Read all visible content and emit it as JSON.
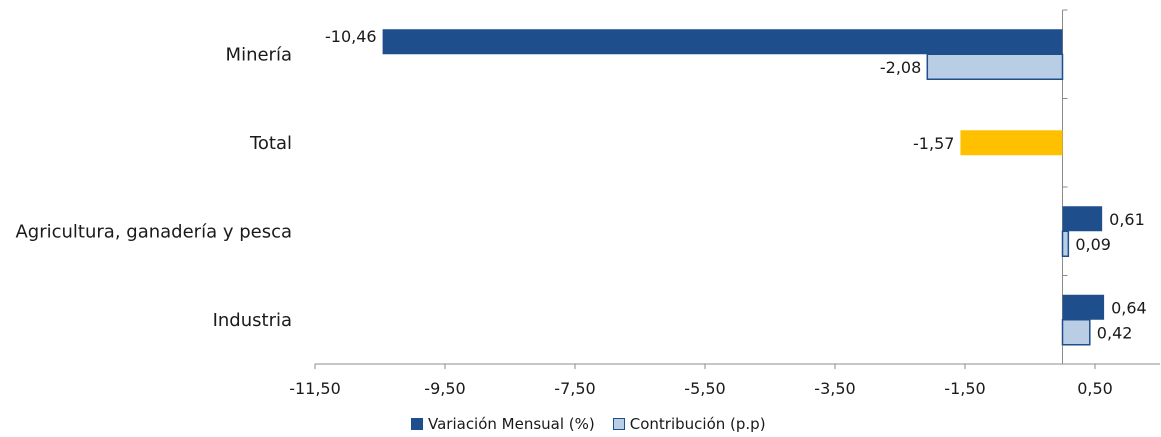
{
  "chart_data": {
    "type": "bar",
    "orientation": "horizontal",
    "categories": [
      "Minería",
      "Total",
      "Agricultura, ganadería y pesca",
      "Industria"
    ],
    "series": [
      {
        "name": "Variación Mensual (%)",
        "values": [
          -10.46,
          null,
          0.61,
          0.64
        ],
        "labels": [
          "-10,46",
          null,
          "0,61",
          "0,64"
        ],
        "color": "#1f4e8c"
      },
      {
        "name": "Contribución (p.p)",
        "values": [
          -2.08,
          null,
          0.09,
          0.42
        ],
        "labels": [
          "-2,08",
          null,
          "0,09",
          "0,42"
        ],
        "color": "#b9cde5"
      },
      {
        "name": "",
        "values": [
          null,
          -1.57,
          null,
          null
        ],
        "labels": [
          null,
          "-1,57",
          null,
          null
        ],
        "color": "#ffc000"
      }
    ],
    "xlim": [
      -11.5,
      1.5
    ],
    "xticks": [
      -11.5,
      -9.5,
      -7.5,
      -5.5,
      -3.5,
      -1.5,
      0.5
    ],
    "xtick_labels": [
      "-11,50",
      "-9,50",
      "-7,50",
      "-5,50",
      "-3,50",
      "-1,50",
      "0,50"
    ],
    "grid": false,
    "legend_position": "bottom"
  }
}
